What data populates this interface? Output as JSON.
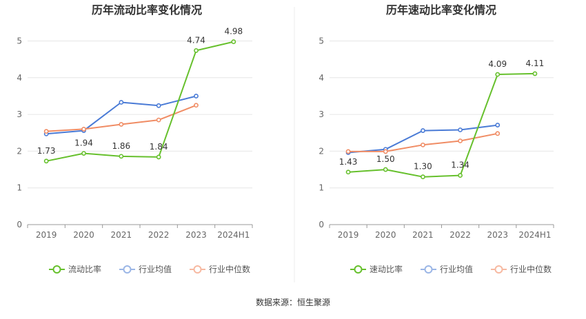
{
  "source": "数据来源：恒生聚源",
  "colors": {
    "main": "#66c02c",
    "avg": "#4a7bd6",
    "median": "#f08c64",
    "legend_avg": "#9bb6e6",
    "legend_median": "#f7b9a1"
  },
  "chart_data": [
    {
      "type": "line",
      "title": "历年流动比率变化情况",
      "categories": [
        "2019",
        "2020",
        "2021",
        "2022",
        "2023",
        "2024H1"
      ],
      "yticks": [
        "0",
        "1",
        "2",
        "3",
        "4",
        "5"
      ],
      "ylim": [
        0,
        5
      ],
      "grid": true,
      "legend": "bottom",
      "series": [
        {
          "name": "流动比率",
          "values": [
            1.73,
            1.94,
            1.86,
            1.84,
            4.74,
            4.98
          ],
          "labels": [
            "1.73",
            "1.94",
            "1.86",
            "1.84",
            "4.74",
            "4.98"
          ]
        },
        {
          "name": "行业均值",
          "values": [
            2.47,
            2.56,
            3.33,
            3.24,
            3.5,
            null
          ]
        },
        {
          "name": "行业中位数",
          "values": [
            2.54,
            2.6,
            2.73,
            2.85,
            3.25,
            null
          ]
        }
      ]
    },
    {
      "type": "line",
      "title": "历年速动比率变化情况",
      "categories": [
        "2019",
        "2020",
        "2021",
        "2022",
        "2023",
        "2024H1"
      ],
      "yticks": [
        "0",
        "1",
        "2",
        "3",
        "4",
        "5"
      ],
      "ylim": [
        0,
        5
      ],
      "grid": true,
      "legend": "bottom",
      "series": [
        {
          "name": "速动比率",
          "values": [
            1.43,
            1.5,
            1.3,
            1.34,
            4.09,
            4.11
          ],
          "labels": [
            "1.43",
            "1.50",
            "1.30",
            "1.34",
            "4.09",
            "4.11"
          ]
        },
        {
          "name": "行业均值",
          "values": [
            1.96,
            2.05,
            2.56,
            2.58,
            2.71,
            null
          ]
        },
        {
          "name": "行业中位数",
          "values": [
            1.99,
            1.99,
            2.17,
            2.28,
            2.48,
            null
          ]
        }
      ]
    }
  ]
}
